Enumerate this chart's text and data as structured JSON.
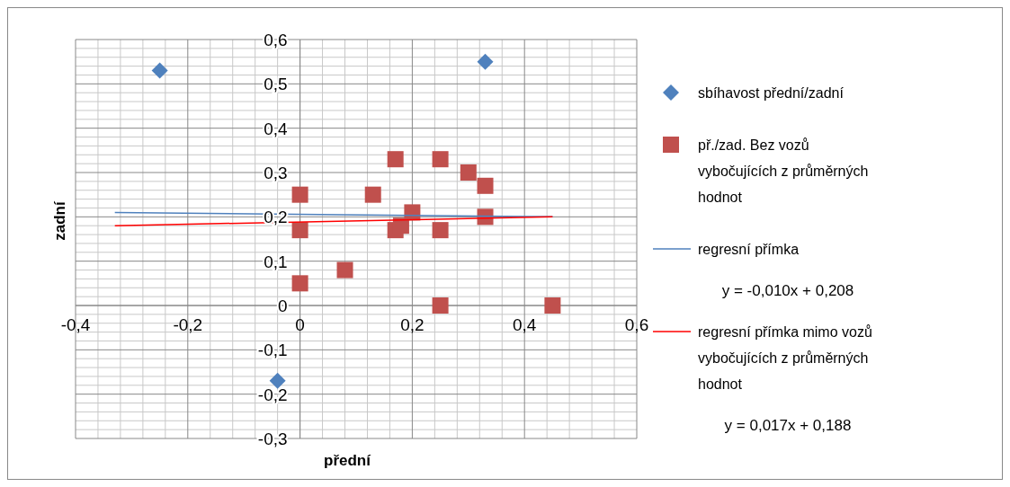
{
  "chart_data": {
    "type": "scatter",
    "xlabel": "přední",
    "ylabel": "zadní",
    "xlim": [
      -0.4,
      0.6
    ],
    "xticks": [
      {
        "value": -0.4,
        "label": "-0,4"
      },
      {
        "value": -0.2,
        "label": "-0,2"
      },
      {
        "value": 0,
        "label": "0"
      },
      {
        "value": 0.2,
        "label": "0,2"
      },
      {
        "value": 0.4,
        "label": "0,4"
      },
      {
        "value": 0.6,
        "label": "0,6"
      }
    ],
    "ylim": [
      -0.3,
      0.6
    ],
    "yticks": [
      {
        "value": -0.3,
        "label": "-0,3"
      },
      {
        "value": -0.2,
        "label": "-0,2"
      },
      {
        "value": -0.1,
        "label": "-0,1"
      },
      {
        "value": 0,
        "label": "0"
      },
      {
        "value": 0.1,
        "label": "0,1"
      },
      {
        "value": 0.2,
        "label": "0,2"
      },
      {
        "value": 0.3,
        "label": "0,3"
      },
      {
        "value": 0.4,
        "label": "0,4"
      },
      {
        "value": 0.5,
        "label": "0,5"
      },
      {
        "value": 0.6,
        "label": "0,6"
      }
    ],
    "grid": true,
    "legend": "right",
    "series": [
      {
        "name": "sbíhavost přední/zadní",
        "marker": "diamond",
        "color": "#4f81bd",
        "x": [
          -0.25,
          0.33,
          -0.04
        ],
        "values": [
          0.53,
          0.55,
          -0.17
        ]
      },
      {
        "name": "př./zad. Bez vozů vybočujících z průměrných hodnot",
        "marker": "square",
        "color": "#c0504d",
        "x": [
          0,
          0,
          0,
          0.08,
          0.13,
          0.17,
          0.17,
          0.18,
          0.2,
          0.25,
          0.25,
          0.25,
          0.3,
          0.33,
          0.33,
          0.45
        ],
        "values": [
          0.25,
          0.17,
          0.05,
          0.08,
          0.25,
          0.33,
          0.17,
          0.18,
          0.21,
          0.33,
          0.17,
          0,
          0.3,
          0.27,
          0.2,
          0
        ]
      },
      {
        "name": "regresní přímka",
        "type": "line",
        "color": "#4f81bd",
        "x": [
          -0.33,
          0.45
        ],
        "values": [
          0.21,
          0.2
        ]
      },
      {
        "name": "regresní přímka mimo vozů vybočujících z průměrných hodnot",
        "type": "line",
        "color": "#ff0000",
        "x": [
          -0.33,
          0.45
        ],
        "values": [
          0.18,
          0.2
        ]
      }
    ],
    "annotations": [
      "y = -0,010x + 0,208",
      "y = 0,017x + 0,188"
    ]
  }
}
